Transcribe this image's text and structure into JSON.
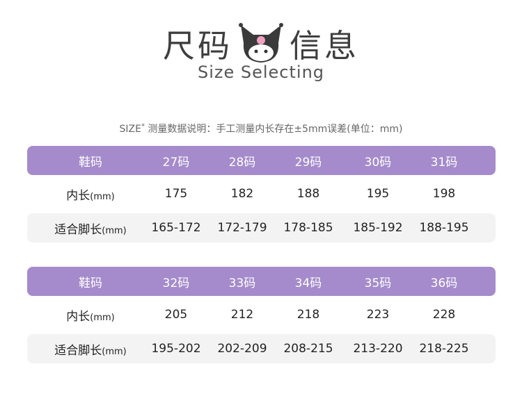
{
  "header": {
    "title_left": "尺码",
    "title_right": "信息",
    "subtitle": "Size Selecting",
    "logo_icon": "kuromi-face-icon"
  },
  "note": {
    "prefix": "SIZE",
    "star": "*",
    "text": " 测量数据说明：手工测量内长存在±5mm误差(单位：mm)"
  },
  "colors": {
    "header_bg": "#a58bcb",
    "row_alt": "#f3f3f3"
  },
  "tables": [
    {
      "header": [
        "鞋码",
        "27码",
        "28码",
        "29码",
        "30码",
        "31码"
      ],
      "inner": {
        "label": "内长",
        "unit": "(mm)",
        "values": [
          "175",
          "182",
          "188",
          "195",
          "198"
        ]
      },
      "foot": {
        "label": "适合脚长",
        "unit": "(mm)",
        "values": [
          "165-172",
          "172-179",
          "178-185",
          "185-192",
          "188-195"
        ]
      }
    },
    {
      "header": [
        "鞋码",
        "32码",
        "33码",
        "34码",
        "35码",
        "36码"
      ],
      "inner": {
        "label": "内长",
        "unit": "(mm)",
        "values": [
          "205",
          "212",
          "218",
          "223",
          "228"
        ]
      },
      "foot": {
        "label": "适合脚长",
        "unit": "(mm)",
        "values": [
          "195-202",
          "202-209",
          "208-215",
          "213-220",
          "218-225"
        ]
      }
    }
  ]
}
